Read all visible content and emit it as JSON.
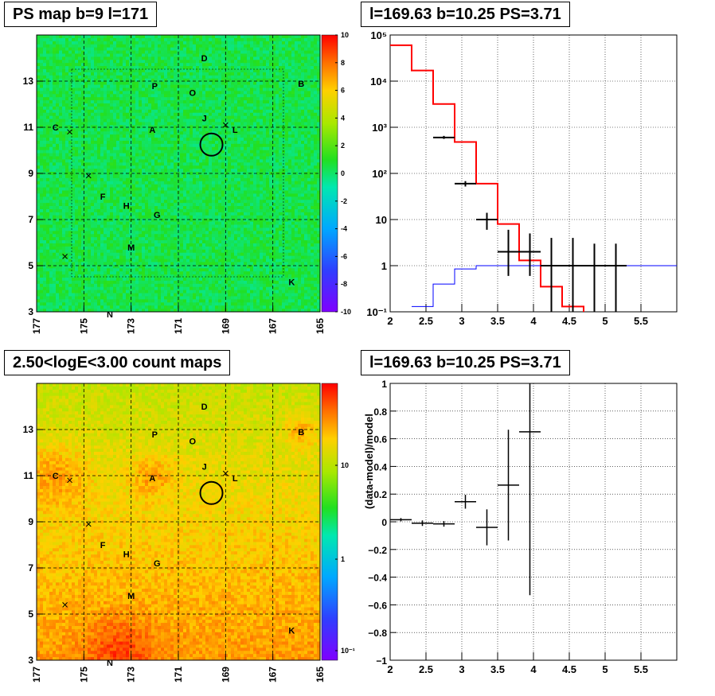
{
  "panels": {
    "map_top": {
      "title": "PS map b=9 l=171",
      "xticks": [
        "177",
        "175",
        "173",
        "171",
        "169",
        "167",
        "165"
      ],
      "yticks": [
        "13",
        "11",
        "9",
        "7",
        "5",
        "3"
      ],
      "colorbar_ticks": [
        "10",
        "8",
        "6",
        "4",
        "2",
        "0",
        "-2",
        "-4",
        "-6",
        "-8",
        "-10"
      ]
    },
    "map_bottom": {
      "title": "2.50<logE<3.00 count maps",
      "xticks": [
        "177",
        "175",
        "173",
        "171",
        "169",
        "167",
        "165"
      ],
      "yticks": [
        "13",
        "11",
        "9",
        "7",
        "5",
        "3"
      ],
      "colorbar_ticks": [
        "10",
        "1",
        "10⁻¹"
      ]
    },
    "spectrum": {
      "title": "l=169.63 b=10.25 PS=3.71",
      "xticks": [
        "2",
        "2.5",
        "3",
        "3.5",
        "4",
        "4.5",
        "5",
        "5.5"
      ],
      "yticks": [
        "10⁵",
        "10⁴",
        "10³",
        "10²",
        "10",
        "1",
        "10⁻¹"
      ]
    },
    "residual": {
      "title": "l=169.63 b=10.25 PS=3.71",
      "ylabel": "(data-model)/model",
      "xticks": [
        "2",
        "2.5",
        "3",
        "3.5",
        "4",
        "4.5",
        "5",
        "5.5"
      ],
      "yticks": [
        "1",
        "0.8",
        "0.6",
        "0.4",
        "0.2",
        "0",
        "−0.2",
        "−0.4",
        "−0.6",
        "−0.8",
        "−1"
      ]
    }
  },
  "source_labels": [
    {
      "label": "D",
      "l": 169.9,
      "b": 14.0
    },
    {
      "label": "B",
      "l": 165.8,
      "b": 12.9
    },
    {
      "label": "P",
      "l": 172.0,
      "b": 12.8
    },
    {
      "label": "O",
      "l": 170.4,
      "b": 12.5
    },
    {
      "label": "J",
      "l": 169.9,
      "b": 11.4
    },
    {
      "label": "C",
      "l": 176.2,
      "b": 11.0
    },
    {
      "label": "A",
      "l": 172.1,
      "b": 10.9
    },
    {
      "label": "L",
      "l": 168.6,
      "b": 10.9
    },
    {
      "label": "F",
      "l": 174.2,
      "b": 8.0
    },
    {
      "label": "H",
      "l": 173.2,
      "b": 7.6
    },
    {
      "label": "G",
      "l": 171.9,
      "b": 7.2
    },
    {
      "label": "M",
      "l": 173.0,
      "b": 5.8
    },
    {
      "label": "K",
      "l": 166.2,
      "b": 4.3
    },
    {
      "label": "N",
      "l": 173.9,
      "b": 2.9
    }
  ],
  "cross_marks": [
    {
      "l": 169.0,
      "b": 11.1
    },
    {
      "l": 175.6,
      "b": 10.8
    },
    {
      "l": 174.8,
      "b": 8.9
    },
    {
      "l": 175.8,
      "b": 5.4
    }
  ],
  "ps_circle": {
    "l": 169.6,
    "b": 10.25
  },
  "chart_data": [
    {
      "type": "heatmap",
      "title": "PS map b=9 l=171",
      "xlim": [
        177,
        165
      ],
      "ylim": [
        3,
        15
      ],
      "zlim": [
        -10,
        10
      ],
      "note_values": "near-zero residual significance field"
    },
    {
      "type": "heatmap",
      "title": "2.50<logE<3.00 count maps",
      "xlim": [
        177,
        165
      ],
      "ylim": [
        3,
        15
      ],
      "zscale": "log",
      "zlim": [
        0.1,
        60
      ]
    },
    {
      "type": "line",
      "title": "l=169.63 b=10.25 PS=3.71",
      "xlim": [
        2,
        6
      ],
      "ylim": [
        0.1,
        100000
      ],
      "yscale": "log",
      "series": [
        {
          "color": "#ff0000",
          "x": [
            1.9,
            2.3,
            2.6,
            2.9,
            3.2,
            3.5,
            3.8,
            4.1,
            4.4,
            4.7
          ],
          "values": [
            60000,
            17000,
            3200,
            480,
            60,
            8,
            1.3,
            0.35,
            0.13,
            0.1
          ]
        },
        {
          "color": "#0000ff",
          "x": [
            2.3,
            2.6,
            2.9,
            3.2,
            3.5,
            3.8,
            4.1,
            4.4,
            4.7,
            5.0,
            5.3,
            5.6,
            6.0
          ],
          "values": [
            0.13,
            0.4,
            0.85,
            1.0,
            1.0,
            1.0,
            1.0,
            1.0,
            1.0,
            1.0,
            1.0,
            1.0,
            1.0
          ]
        },
        {
          "color": "#000000",
          "x": [
            2.75,
            3.05,
            3.35,
            3.65,
            3.95,
            4.25,
            4.55,
            4.85,
            5.15
          ],
          "values": [
            600,
            60,
            10,
            2,
            2,
            1,
            1,
            1,
            1
          ],
          "yerr_low": [
            560,
            52,
            6,
            0.6,
            0.6,
            0.1,
            0.1,
            0.1,
            0.1
          ],
          "yerr_high": [
            650,
            68,
            14,
            6,
            5,
            4,
            4,
            3,
            3
          ],
          "xerr": 0.15
        }
      ]
    },
    {
      "type": "scatter",
      "title": "l=169.63 b=10.25 PS=3.71",
      "ylabel": "(data-model)/model",
      "xlim": [
        2,
        6
      ],
      "ylim": [
        -1,
        1
      ],
      "series": [
        {
          "x": [
            2.15,
            2.45,
            2.75,
            3.05,
            3.35,
            3.65,
            3.95
          ],
          "values": [
            0.015,
            -0.01,
            -0.015,
            0.145,
            -0.04,
            0.265,
            0.65
          ],
          "yerr": [
            0.012,
            0.02,
            0.02,
            0.05,
            0.13,
            0.4,
            1.2
          ],
          "xerr": 0.15
        }
      ]
    }
  ]
}
